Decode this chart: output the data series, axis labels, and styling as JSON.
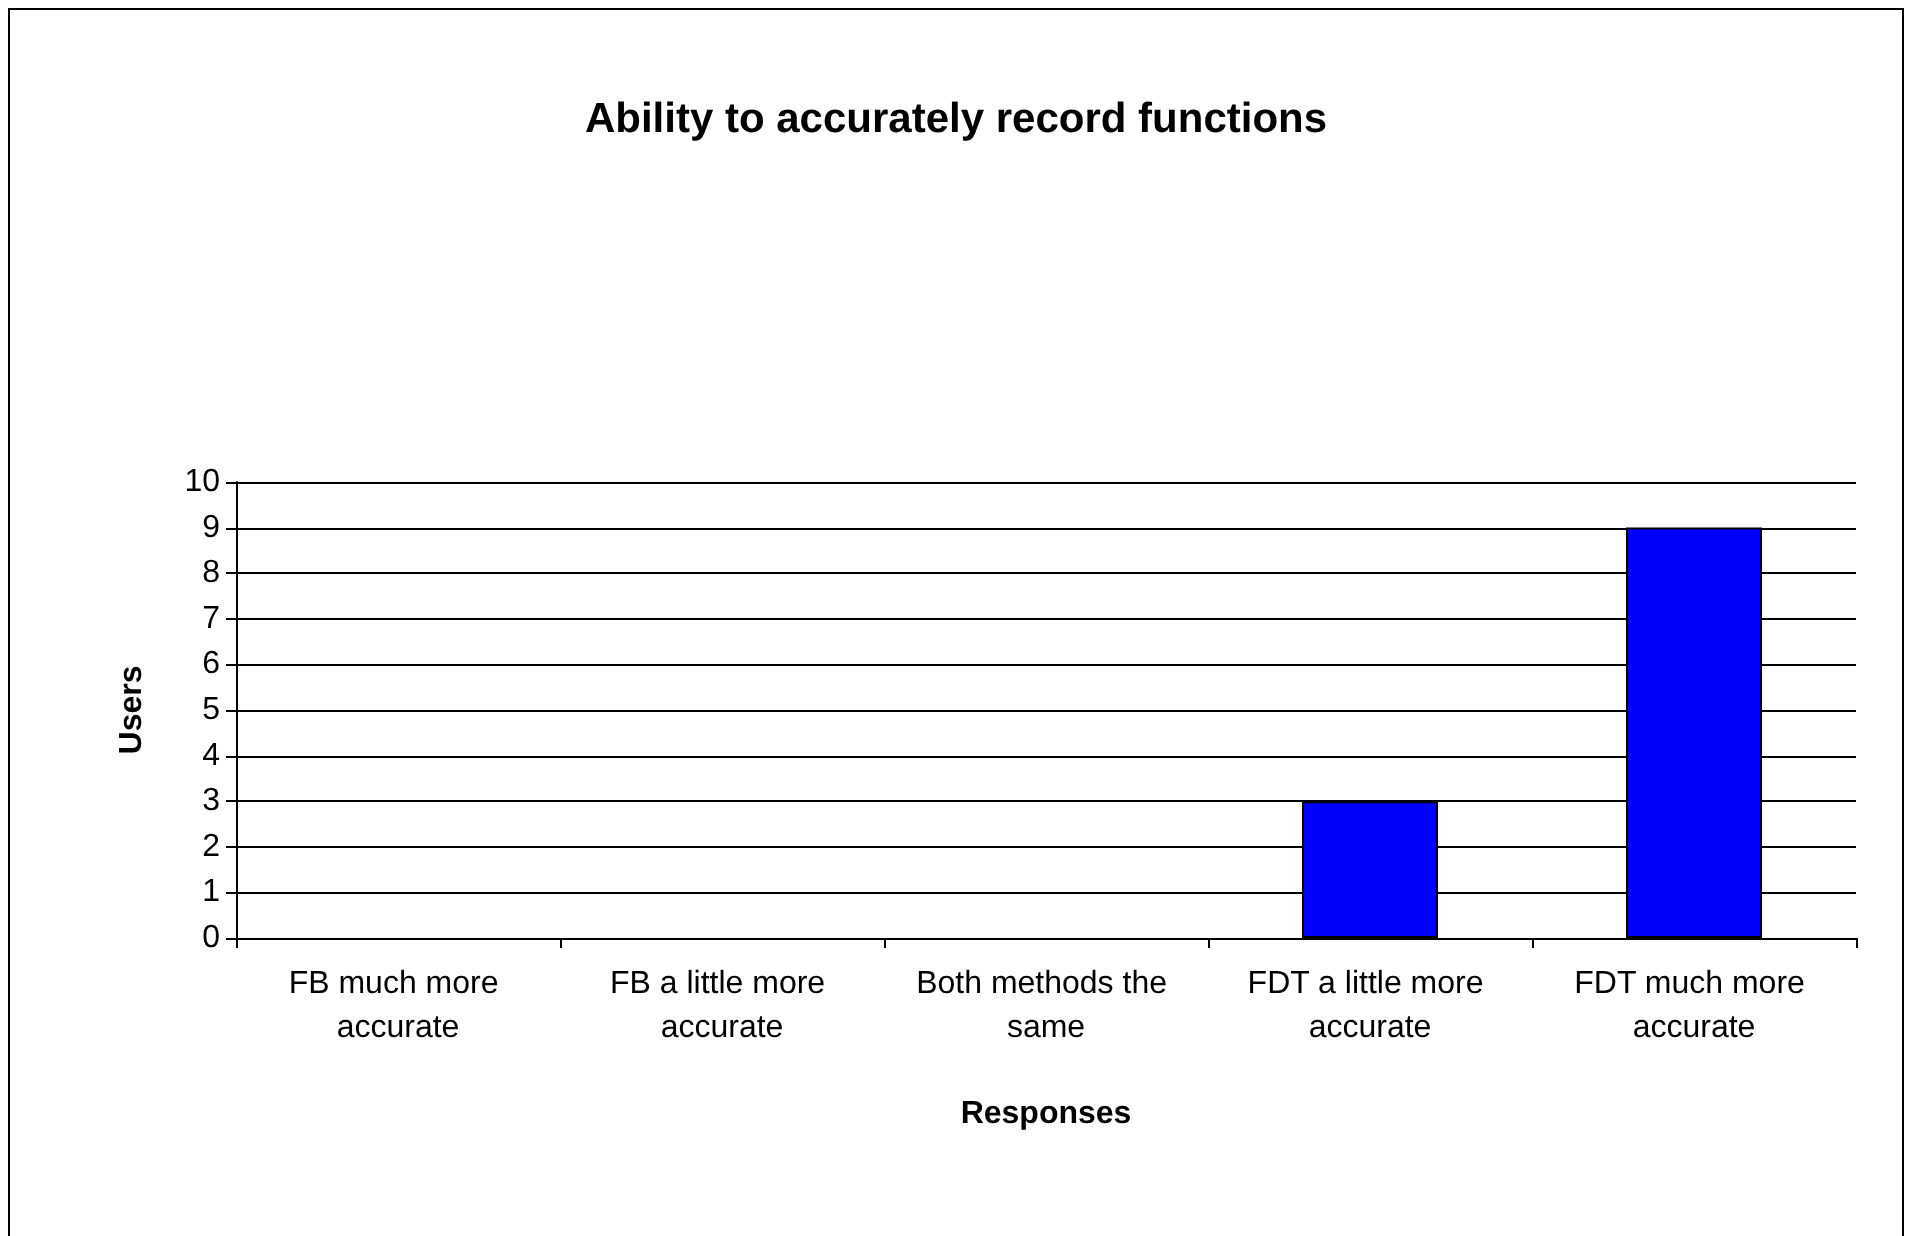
{
  "chart_data": {
    "type": "bar",
    "title": "Ability to accurately record functions",
    "xlabel": "Responses",
    "ylabel": "Users",
    "categories": [
      "FB much more accurate",
      "FB a little more accurate",
      "Both methods the same",
      "FDT a little more accurate",
      "FDT much more accurate"
    ],
    "values": [
      0,
      0,
      0,
      3,
      9
    ],
    "color": "#0000ff",
    "ylim": [
      0,
      10
    ],
    "yticks": [
      0,
      1,
      2,
      3,
      4,
      5,
      6,
      7,
      8,
      9,
      10
    ],
    "grid": "y"
  }
}
